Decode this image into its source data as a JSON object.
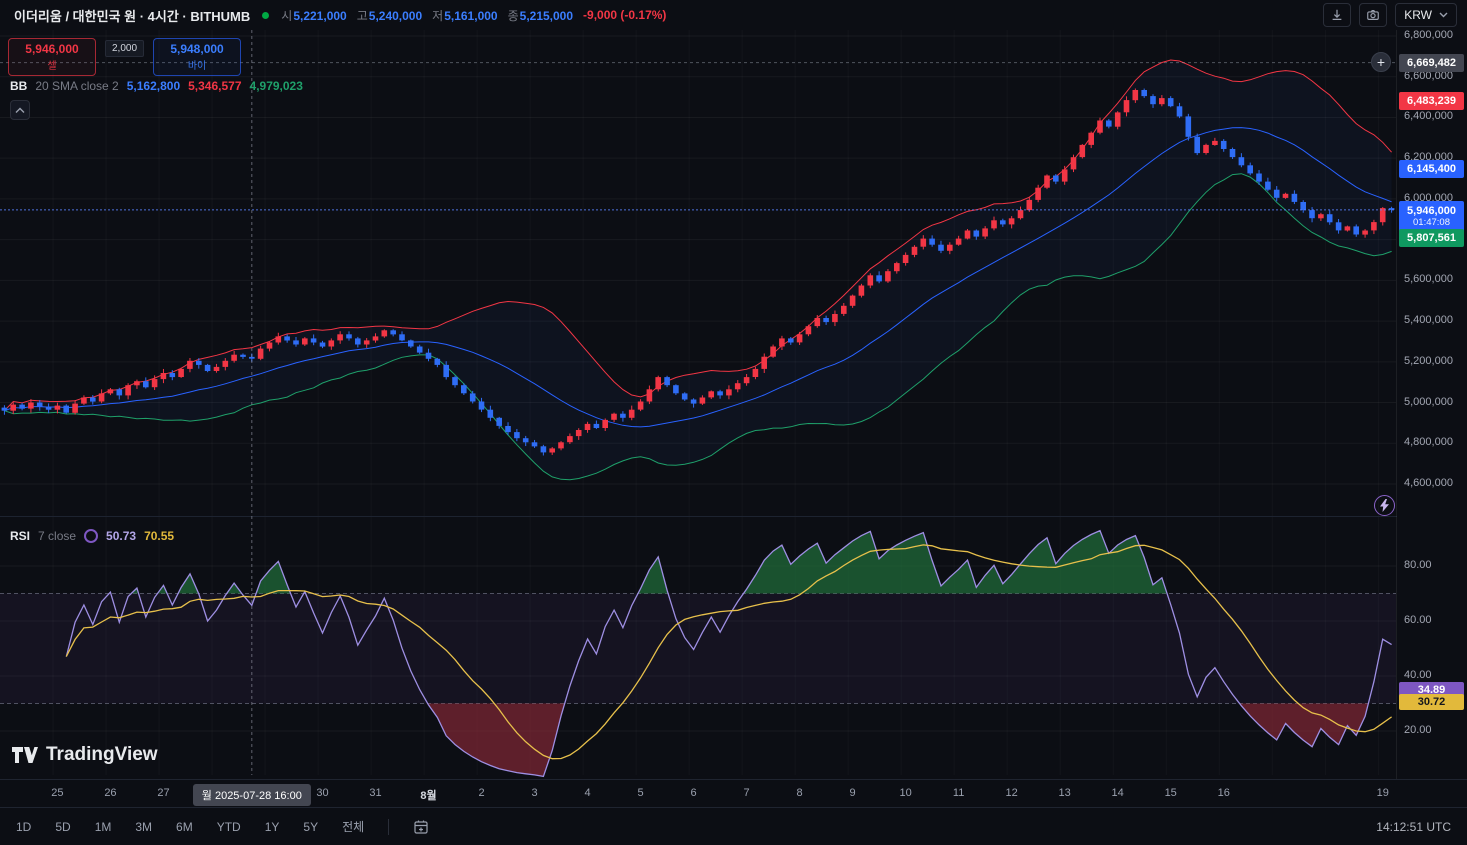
{
  "header": {
    "symbol_title": "이더리움 / 대한민국 원 · 4시간 · BITHUMB",
    "ohlc": {
      "o_label": "시",
      "o": "5,221,000",
      "h_label": "고",
      "h": "5,240,000",
      "l_label": "저",
      "l": "5,161,000",
      "c_label": "종",
      "c": "5,215,000",
      "change": "-9,000 (-0.17%)"
    },
    "currency": "KRW",
    "icons": [
      "download-icon",
      "camera-icon",
      "chevron-down-icon"
    ]
  },
  "order_panel": {
    "sell_price": "5,946,000",
    "sell_label": "셀",
    "spread": "2,000",
    "buy_price": "5,948,000",
    "buy_label": "바이"
  },
  "bb_legend": {
    "name": "BB",
    "params": "20 SMA close 2",
    "basis": "5,162,800",
    "upper": "5,346,577",
    "lower": "4,979,023"
  },
  "rsi_legend": {
    "name": "RSI",
    "params": "7 close",
    "value": "50.73",
    "ma": "70.55"
  },
  "price_scale": {
    "ticks": [
      "6,800,000",
      "6,600,000",
      "6,400,000",
      "6,200,000",
      "6,000,000",
      "5,800,000",
      "5,600,000",
      "5,400,000",
      "5,200,000",
      "5,000,000",
      "4,800,000",
      "4,600,000"
    ],
    "tags": [
      {
        "text": "6,669,482",
        "value": 6669482,
        "type": "crosshair"
      },
      {
        "text": "6,483,239",
        "value": 6483239,
        "type": "bb-upper"
      },
      {
        "text": "6,145,400",
        "value": 6145400,
        "type": "bb-basis"
      },
      {
        "text": "5,946,000",
        "value": 5946000,
        "type": "last-price",
        "countdown": "01:47:08"
      },
      {
        "text": "5,807,561",
        "value": 5807561,
        "type": "bb-lower"
      }
    ]
  },
  "rsi_scale": {
    "ticks": [
      "80.00",
      "60.00",
      "40.00",
      "20.00"
    ],
    "tags": [
      {
        "text": "34.89",
        "value": 34.89,
        "type": "rsi"
      },
      {
        "text": "30.72",
        "value": 30.72,
        "type": "rsi-ma"
      }
    ]
  },
  "time_axis": {
    "crosshair_label": "월 2025-07-28 16:00"
  },
  "footer": {
    "logo": "TradingView",
    "ranges": [
      "1D",
      "5D",
      "1M",
      "3M",
      "6M",
      "YTD",
      "1Y",
      "5Y",
      "전체"
    ],
    "clock": "14:12:51 UTC"
  },
  "colors": {
    "bg": "#0c0e14",
    "up": "#f23645",
    "down": "#2f6df5",
    "bb_upper": "#f23645",
    "bb_basis": "#2962ff",
    "bb_lower": "#1fa06a",
    "rsi": "#9e8fe3",
    "rsi_ma": "#e7c04b",
    "tag_gray": "#434651",
    "tag_blue": "#2962ff",
    "tag_green": "#0f9960",
    "tag_purple": "#7e57c2",
    "tag_yellow": "#e2b93b",
    "status_dot": "#00a843"
  },
  "chart_data": {
    "type": "candlestick",
    "symbol": "이더리움/KRW BITHUMB",
    "interval": "4h",
    "unit": "thousand KRW",
    "price_axis": {
      "min": 4600,
      "max": 6800,
      "step": 200
    },
    "rsi_axis": {
      "ticks": [
        80,
        60,
        40,
        20
      ],
      "bands": [
        70,
        30
      ]
    },
    "indicators": {
      "bb": {
        "length": 20,
        "stdev": 2
      },
      "rsi": {
        "length": 7,
        "ma_length": 14
      }
    },
    "first_open": 4975,
    "crosshair_index": 28,
    "closes": [
      4960,
      4990,
      4970,
      5000,
      4980,
      4965,
      4985,
      4950,
      4995,
      5025,
      5005,
      5045,
      5065,
      5035,
      5085,
      5105,
      5075,
      5115,
      5145,
      5125,
      5165,
      5205,
      5185,
      5155,
      5175,
      5205,
      5235,
      5224,
      5215,
      5265,
      5295,
      5325,
      5305,
      5285,
      5315,
      5295,
      5275,
      5305,
      5335,
      5315,
      5285,
      5305,
      5325,
      5355,
      5335,
      5305,
      5275,
      5245,
      5215,
      5185,
      5125,
      5085,
      5045,
      5005,
      4965,
      4925,
      4885,
      4855,
      4825,
      4805,
      4785,
      4755,
      4775,
      4805,
      4835,
      4865,
      4895,
      4875,
      4915,
      4945,
      4925,
      4965,
      5005,
      5065,
      5125,
      5085,
      5045,
      5015,
      4995,
      5025,
      5055,
      5035,
      5065,
      5095,
      5125,
      5165,
      5225,
      5275,
      5315,
      5295,
      5335,
      5375,
      5415,
      5395,
      5435,
      5475,
      5525,
      5575,
      5625,
      5595,
      5645,
      5685,
      5725,
      5765,
      5805,
      5775,
      5745,
      5775,
      5805,
      5845,
      5815,
      5855,
      5895,
      5875,
      5905,
      5945,
      5995,
      6055,
      6115,
      6085,
      6145,
      6205,
      6265,
      6325,
      6385,
      6355,
      6425,
      6485,
      6535,
      6505,
      6465,
      6495,
      6455,
      6405,
      6305,
      6225,
      6265,
      6285,
      6245,
      6205,
      6165,
      6125,
      6085,
      6045,
      6005,
      6025,
      5985,
      5945,
      5905,
      5925,
      5885,
      5845,
      5865,
      5825,
      5845,
      5886,
      5955,
      5946
    ],
    "time_labels": [
      {
        "text": "25",
        "day": 1
      },
      {
        "text": "26",
        "day": 2
      },
      {
        "text": "27",
        "day": 3
      },
      {
        "text": "30",
        "day": 6
      },
      {
        "text": "31",
        "day": 7
      },
      {
        "text": "8월",
        "day": 8,
        "month": true
      },
      {
        "text": "2",
        "day": 9
      },
      {
        "text": "3",
        "day": 10
      },
      {
        "text": "4",
        "day": 11
      },
      {
        "text": "5",
        "day": 12
      },
      {
        "text": "6",
        "day": 13
      },
      {
        "text": "7",
        "day": 14
      },
      {
        "text": "8",
        "day": 15
      },
      {
        "text": "9",
        "day": 16
      },
      {
        "text": "10",
        "day": 17
      },
      {
        "text": "11",
        "day": 18
      },
      {
        "text": "12",
        "day": 19
      },
      {
        "text": "13",
        "day": 20
      },
      {
        "text": "14",
        "day": 21
      },
      {
        "text": "15",
        "day": 22
      },
      {
        "text": "16",
        "day": 23
      },
      {
        "text": "19",
        "day": 26
      }
    ]
  }
}
